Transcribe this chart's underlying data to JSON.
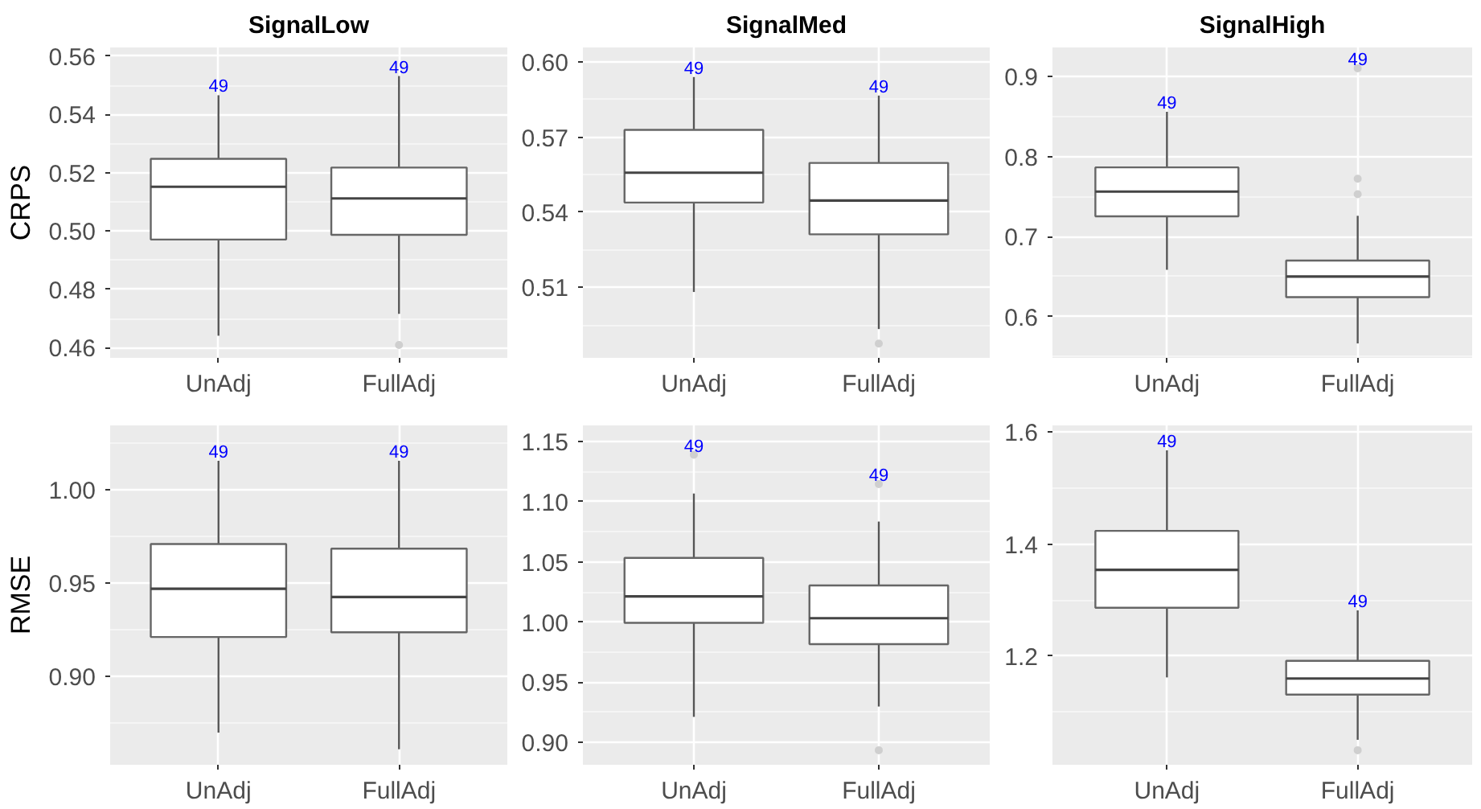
{
  "chart_data": [
    {
      "type": "box",
      "title": "SignalLow",
      "ylabel": "CRPS",
      "categories": [
        "UnAdj",
        "FullAdj"
      ],
      "grid": true,
      "ylim": [
        0.4565,
        0.563
      ],
      "yticks": [
        {
          "value": 0.46,
          "label": "0.46"
        },
        {
          "value": 0.48,
          "label": "0.48"
        },
        {
          "value": 0.5,
          "label": "0.50"
        },
        {
          "value": 0.52,
          "label": "0.52"
        },
        {
          "value": 0.54,
          "label": "0.54"
        },
        {
          "value": 0.56,
          "label": "0.56"
        }
      ],
      "boxes": [
        {
          "low": 0.4641,
          "q1": 0.4971,
          "median": 0.5152,
          "q3": 0.5248,
          "high": 0.5466
        },
        {
          "low": 0.4716,
          "q1": 0.4987,
          "median": 0.5112,
          "q3": 0.5218,
          "high": 0.5532,
          "outliers": [
            0.4609
          ]
        }
      ],
      "annotations": [
        "49",
        "49"
      ]
    },
    {
      "type": "box",
      "title": "SignalMed",
      "categories": [
        "UnAdj",
        "FullAdj"
      ],
      "grid": true,
      "ylim": [
        0.4819,
        0.6058
      ],
      "yticks": [
        {
          "value": 0.51,
          "label": "0.51"
        },
        {
          "value": 0.54,
          "label": "0.54"
        },
        {
          "value": 0.57,
          "label": "0.57"
        },
        {
          "value": 0.6,
          "label": "0.60"
        }
      ],
      "boxes": [
        {
          "low": 0.5082,
          "q1": 0.5439,
          "median": 0.5558,
          "q3": 0.5729,
          "high": 0.594
        },
        {
          "low": 0.4934,
          "q1": 0.5312,
          "median": 0.5447,
          "q3": 0.5597,
          "high": 0.5866,
          "outliers": [
            0.4876
          ]
        }
      ],
      "annotations": [
        "49",
        "49"
      ]
    },
    {
      "type": "box",
      "title": "SignalHigh",
      "categories": [
        "UnAdj",
        "FullAdj"
      ],
      "grid": true,
      "ylim": [
        0.5486,
        0.936
      ],
      "yticks": [
        0.6,
        0.7,
        0.8,
        0.9
      ],
      "boxes": [
        {
          "low": 0.6585,
          "q1": 0.7253,
          "median": 0.7561,
          "q3": 0.7863,
          "high": 0.8557
        },
        {
          "low": 0.5666,
          "q1": 0.6244,
          "median": 0.6501,
          "q3": 0.67,
          "high": 0.7259,
          "outliers": [
            0.7529,
            0.7722,
            0.91
          ]
        }
      ],
      "annotations": [
        "49",
        "49"
      ]
    },
    {
      "type": "box",
      "ylabel": "RMSE",
      "categories": [
        "UnAdj",
        "FullAdj"
      ],
      "grid": true,
      "ylim": [
        0.8528,
        1.0342
      ],
      "yticks": [
        {
          "value": 0.9,
          "label": "0.90"
        },
        {
          "value": 0.95,
          "label": "0.95"
        },
        {
          "value": 1.0,
          "label": "1.00"
        }
      ],
      "boxes": [
        {
          "low": 0.87,
          "q1": 0.9211,
          "median": 0.9469,
          "q3": 0.9708,
          "high": 1.0153
        },
        {
          "low": 0.8611,
          "q1": 0.9236,
          "median": 0.9425,
          "q3": 0.9683,
          "high": 1.0153
        }
      ],
      "annotations": [
        "49",
        "49"
      ]
    },
    {
      "type": "box",
      "categories": [
        "UnAdj",
        "FullAdj"
      ],
      "grid": true,
      "ylim": [
        0.8814,
        1.1634
      ],
      "yticks": [
        {
          "value": 0.9,
          "label": "0.90"
        },
        {
          "value": 0.95,
          "label": "0.95"
        },
        {
          "value": 1.0,
          "label": "1.00"
        },
        {
          "value": 1.05,
          "label": "1.05"
        },
        {
          "value": 1.1,
          "label": "1.10"
        },
        {
          "value": 1.15,
          "label": "1.15"
        }
      ],
      "boxes": [
        {
          "low": 0.9212,
          "q1": 0.9993,
          "median": 1.0213,
          "q3": 1.0533,
          "high": 1.1068,
          "outliers": [
            1.139
          ]
        },
        {
          "low": 0.9298,
          "q1": 0.9816,
          "median": 1.0032,
          "q3": 1.0304,
          "high": 1.0835,
          "outliers": [
            1.1146,
            0.8935
          ]
        }
      ],
      "annotations": [
        "49",
        "49"
      ]
    },
    {
      "type": "box",
      "categories": [
        "UnAdj",
        "FullAdj"
      ],
      "grid": true,
      "ylim": [
        1.006,
        1.612
      ],
      "yticks": [
        1.2,
        1.4,
        1.6
      ],
      "boxes": [
        {
          "low": 1.162,
          "q1": 1.2863,
          "median": 1.3541,
          "q3": 1.4237,
          "high": 1.5675
        },
        {
          "low": 1.0506,
          "q1": 1.1313,
          "median": 1.16,
          "q3": 1.1916,
          "high": 1.2817,
          "outliers": [
            1.032
          ]
        }
      ],
      "annotations": [
        "49",
        "49"
      ]
    }
  ]
}
